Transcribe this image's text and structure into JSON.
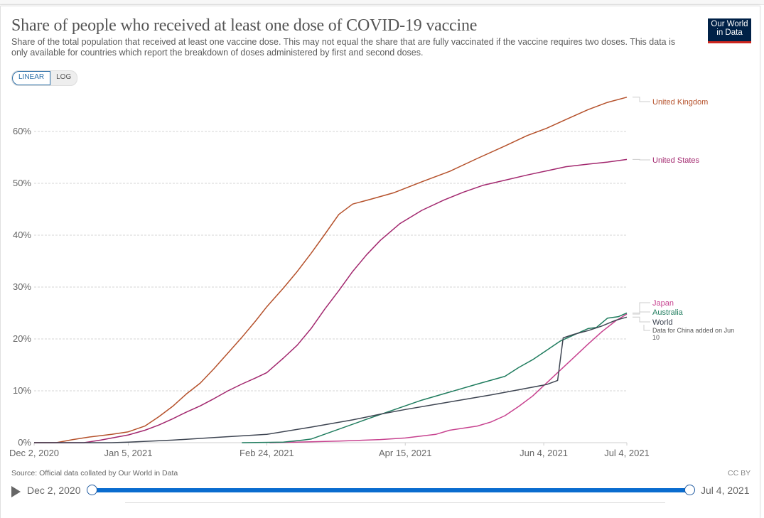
{
  "header": {
    "title": "Share of people who received at least one dose of COVID-19 vaccine",
    "subtitle": "Share of the total population that received at least one vaccine dose. This may not equal the share that are fully vaccinated if the vaccine requires two doses. This data is only available for countries which report the breakdown of doses administered by first and second doses.",
    "logo_line1": "Our World",
    "logo_line2": "in Data"
  },
  "scale_toggle": {
    "options": [
      "LINEAR",
      "LOG"
    ],
    "selected": "LINEAR"
  },
  "footer": {
    "source": "Source: Official data collated by Our World in Data",
    "license": "CC BY"
  },
  "timeline": {
    "start_label": "Dec 2, 2020",
    "end_label": "Jul 4, 2021",
    "play_icon": "play-icon"
  },
  "colors": {
    "logo_bg": "#002147",
    "logo_accent": "#ce261e",
    "timeline_track": "#0a6ccf"
  },
  "chart_data": {
    "type": "line",
    "title": "Share of people who received at least one dose of COVID-19 vaccine",
    "xlabel": "",
    "ylabel": "",
    "x_unit": "days since Dec 2, 2020",
    "xlim": [
      0,
      214
    ],
    "ylim": [
      0,
      70
    ],
    "grid": true,
    "legend_placement": "right (end-of-line labels)",
    "x_ticks": [
      {
        "day": 0,
        "label": "Dec 2, 2020"
      },
      {
        "day": 34,
        "label": "Jan 5, 2021"
      },
      {
        "day": 84,
        "label": "Feb 24, 2021"
      },
      {
        "day": 134,
        "label": "Apr 15, 2021"
      },
      {
        "day": 184,
        "label": "Jun 4, 2021"
      },
      {
        "day": 214,
        "label": "Jul 4, 2021"
      }
    ],
    "y_ticks": [
      {
        "value": 0,
        "label": "0%"
      },
      {
        "value": 10,
        "label": "10%"
      },
      {
        "value": 20,
        "label": "20%"
      },
      {
        "value": 30,
        "label": "30%"
      },
      {
        "value": 40,
        "label": "40%"
      },
      {
        "value": 50,
        "label": "50%"
      },
      {
        "value": 60,
        "label": "60%"
      }
    ],
    "series": [
      {
        "name": "United Kingdom",
        "color": "#b5512b",
        "points": [
          [
            0,
            0
          ],
          [
            8,
            0
          ],
          [
            14,
            0.6
          ],
          [
            20,
            1.1
          ],
          [
            28,
            1.6
          ],
          [
            34,
            2.1
          ],
          [
            40,
            3.2
          ],
          [
            45,
            5.0
          ],
          [
            50,
            7.0
          ],
          [
            55,
            9.4
          ],
          [
            60,
            11.5
          ],
          [
            65,
            14.3
          ],
          [
            70,
            17.3
          ],
          [
            75,
            20.3
          ],
          [
            80,
            23.5
          ],
          [
            84,
            26.2
          ],
          [
            90,
            29.8
          ],
          [
            95,
            33.0
          ],
          [
            100,
            36.5
          ],
          [
            105,
            40.2
          ],
          [
            110,
            44.0
          ],
          [
            115,
            46.0
          ],
          [
            122,
            47.0
          ],
          [
            130,
            48.2
          ],
          [
            140,
            50.3
          ],
          [
            150,
            52.3
          ],
          [
            160,
            54.8
          ],
          [
            170,
            57.2
          ],
          [
            178,
            59.2
          ],
          [
            185,
            60.6
          ],
          [
            192,
            62.3
          ],
          [
            200,
            64.2
          ],
          [
            207,
            65.6
          ],
          [
            214,
            66.6
          ]
        ]
      },
      {
        "name": "United States",
        "color": "#a2276e",
        "points": [
          [
            0,
            0
          ],
          [
            18,
            0
          ],
          [
            24,
            0.5
          ],
          [
            30,
            1.1
          ],
          [
            34,
            1.5
          ],
          [
            40,
            2.4
          ],
          [
            45,
            3.4
          ],
          [
            50,
            4.6
          ],
          [
            55,
            5.9
          ],
          [
            60,
            7.1
          ],
          [
            65,
            8.5
          ],
          [
            70,
            10.0
          ],
          [
            75,
            11.3
          ],
          [
            80,
            12.5
          ],
          [
            84,
            13.5
          ],
          [
            90,
            16.3
          ],
          [
            95,
            18.8
          ],
          [
            100,
            22.0
          ],
          [
            105,
            25.8
          ],
          [
            110,
            29.3
          ],
          [
            115,
            33.0
          ],
          [
            120,
            36.2
          ],
          [
            125,
            39.0
          ],
          [
            132,
            42.2
          ],
          [
            140,
            44.8
          ],
          [
            148,
            46.8
          ],
          [
            155,
            48.3
          ],
          [
            162,
            49.6
          ],
          [
            170,
            50.6
          ],
          [
            178,
            51.6
          ],
          [
            185,
            52.4
          ],
          [
            192,
            53.2
          ],
          [
            200,
            53.7
          ],
          [
            207,
            54.1
          ],
          [
            214,
            54.6
          ]
        ]
      },
      {
        "name": "Japan",
        "color": "#c7428f",
        "points": [
          [
            85,
            0
          ],
          [
            95,
            0.1
          ],
          [
            110,
            0.3
          ],
          [
            125,
            0.6
          ],
          [
            134,
            0.9
          ],
          [
            145,
            1.6
          ],
          [
            150,
            2.4
          ],
          [
            160,
            3.2
          ],
          [
            165,
            4.0
          ],
          [
            170,
            5.2
          ],
          [
            175,
            7.0
          ],
          [
            180,
            9.0
          ],
          [
            185,
            11.5
          ],
          [
            190,
            14.0
          ],
          [
            195,
            16.5
          ],
          [
            200,
            19.0
          ],
          [
            205,
            21.4
          ],
          [
            210,
            23.5
          ],
          [
            214,
            24.8
          ]
        ]
      },
      {
        "name": "Australia",
        "color": "#1f7c5e",
        "points": [
          [
            75,
            0
          ],
          [
            90,
            0.1
          ],
          [
            97,
            0.5
          ],
          [
            100,
            0.7
          ],
          [
            120,
            4.5
          ],
          [
            140,
            8.2
          ],
          [
            160,
            11.3
          ],
          [
            170,
            12.8
          ],
          [
            175,
            14.5
          ],
          [
            180,
            16.0
          ],
          [
            185,
            17.8
          ],
          [
            190,
            19.6
          ],
          [
            195,
            20.8
          ],
          [
            200,
            22.0
          ],
          [
            203,
            22.2
          ],
          [
            207,
            24.0
          ],
          [
            211,
            24.3
          ],
          [
            214,
            25.0
          ]
        ]
      },
      {
        "name": "World",
        "color": "#3e4552",
        "annotation": "Data for China added on Jun 10",
        "points": [
          [
            0,
            0
          ],
          [
            28,
            0
          ],
          [
            34,
            0.1
          ],
          [
            50,
            0.5
          ],
          [
            65,
            1.0
          ],
          [
            84,
            1.6
          ],
          [
            100,
            3.0
          ],
          [
            115,
            4.4
          ],
          [
            125,
            5.5
          ],
          [
            134,
            6.4
          ],
          [
            145,
            7.4
          ],
          [
            155,
            8.3
          ],
          [
            165,
            9.2
          ],
          [
            175,
            10.2
          ],
          [
            185,
            11.2
          ],
          [
            189,
            12.0
          ],
          [
            191,
            20.2
          ],
          [
            195,
            20.9
          ],
          [
            200,
            21.6
          ],
          [
            205,
            22.5
          ],
          [
            210,
            23.6
          ],
          [
            214,
            24.2
          ]
        ]
      }
    ]
  }
}
